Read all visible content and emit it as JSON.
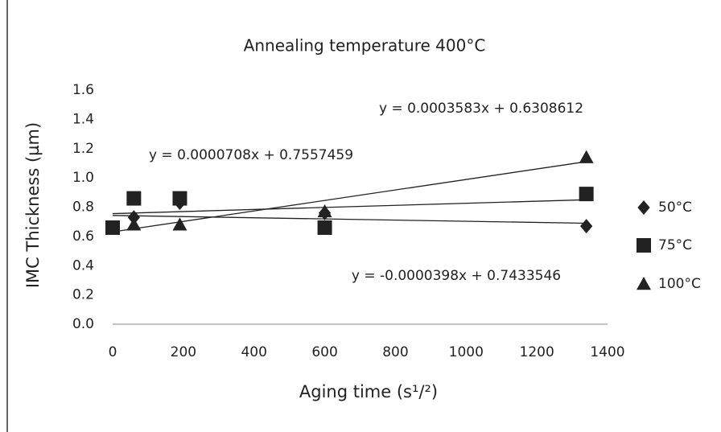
{
  "chart_data": {
    "type": "scatter",
    "title": "Annealing temperature 400°C",
    "x_label": "Aging time (s¹/²)",
    "y_label": "IMC Thickness (µm)",
    "xlim": [
      0,
      1400
    ],
    "xticks": [
      0,
      200,
      400,
      600,
      800,
      1000,
      1200,
      1400
    ],
    "ylim": [
      0,
      1.6
    ],
    "yticks": [
      {
        "value": 0,
        "label": "0.0"
      },
      {
        "value": 0.2,
        "label": "0.2"
      },
      {
        "value": 0.4,
        "label": "0.4"
      },
      {
        "value": 0.6,
        "label": "0.6"
      },
      {
        "value": 0.8,
        "label": "0.8"
      },
      {
        "value": 1.0,
        "label": "1.0"
      },
      {
        "value": 1.2,
        "label": "1.2"
      },
      {
        "value": 1.4,
        "label": "1.4"
      },
      {
        "value": 1.6,
        "label": "1.6"
      }
    ],
    "legend": "right",
    "series": [
      {
        "name": "50°C",
        "color": "#222222",
        "marker": "diamond",
        "x": [
          0,
          60,
          190,
          600,
          1340
        ],
        "values": [
          0.66,
          0.73,
          0.83,
          0.76,
          0.67
        ],
        "trendline": {
          "slope": -3.98e-05,
          "intercept": 0.7433546,
          "label": "y = -0.0000398x + 0.7433546"
        }
      },
      {
        "name": "75°C",
        "color": "#222222",
        "marker": "square",
        "x": [
          0,
          60,
          190,
          600,
          1340
        ],
        "values": [
          0.66,
          0.86,
          0.86,
          0.66,
          0.89
        ],
        "trendline": {
          "slope": 7.08e-05,
          "intercept": 0.7557459,
          "label": "y = 0.0000708x + 0.7557459"
        }
      },
      {
        "name": "100°C",
        "color": "#222222",
        "marker": "triangle",
        "x": [
          0,
          60,
          190,
          600,
          1340
        ],
        "values": [
          0.66,
          0.68,
          0.68,
          0.77,
          1.14
        ],
        "trendline": {
          "slope": 0.0003583,
          "intercept": 0.6308612,
          "label": "y = 0.0003583x + 0.6308612"
        }
      }
    ]
  }
}
